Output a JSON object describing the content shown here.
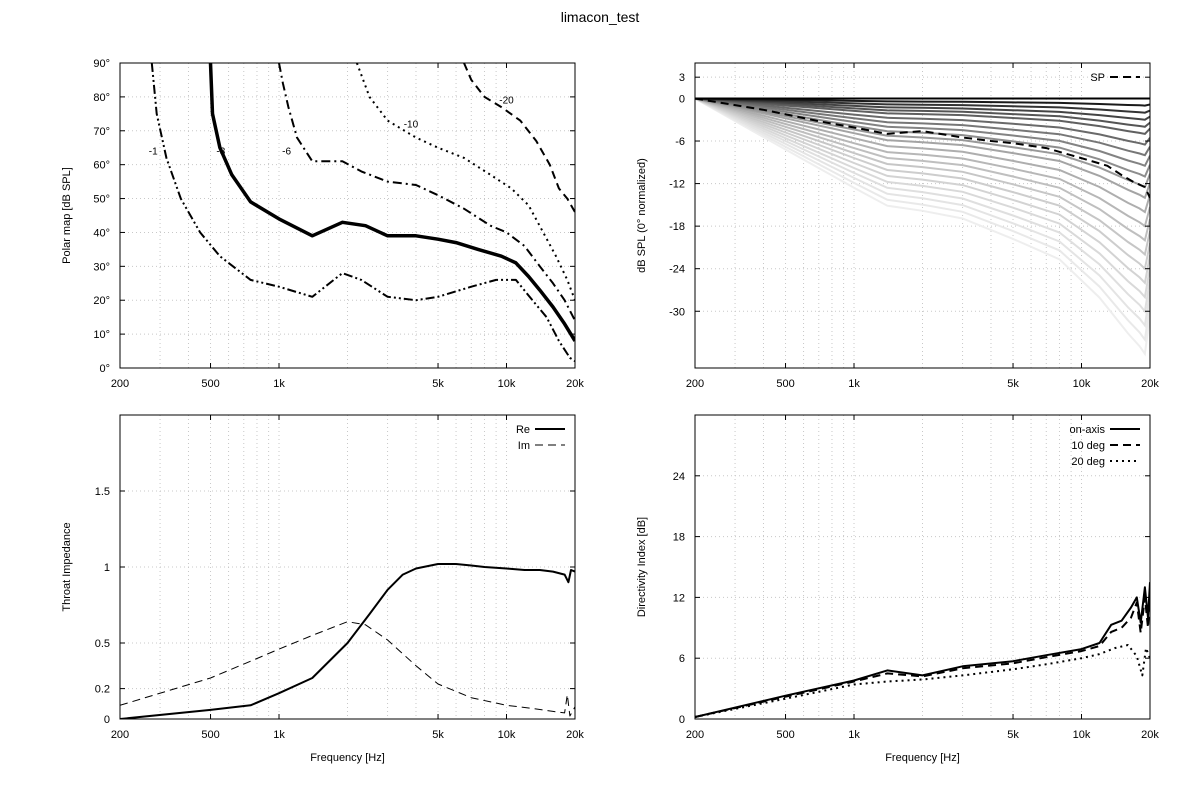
{
  "title": "limacon_test",
  "chart_data": [
    {
      "id": "polar",
      "type": "line",
      "subtype": "contour",
      "xlabel": "",
      "ylabel": "Polar map [dB SPL]",
      "xscale": "log",
      "xlim": [
        200,
        20000
      ],
      "ylim": [
        0,
        90
      ],
      "xticks": [
        200,
        500,
        1000,
        5000,
        10000,
        20000
      ],
      "xticklabels": [
        "200",
        "500",
        "1k",
        "5k",
        "10k",
        "20k"
      ],
      "yticks": [
        0,
        10,
        20,
        30,
        40,
        50,
        60,
        70,
        80,
        90
      ],
      "yticklabels": [
        "0°",
        "10°",
        "20°",
        "30°",
        "40°",
        "50°",
        "60°",
        "70°",
        "80°",
        "90°"
      ],
      "grid": true,
      "series": [
        {
          "name": "-1",
          "style": "dashdotdot",
          "width": 2,
          "label_at": [
            280,
            63
          ],
          "x": [
            276,
            290,
            320,
            370,
            450,
            550,
            750,
            1000,
            1400,
            1900,
            2300,
            3000,
            4000,
            5000,
            7000,
            9000,
            11000,
            13000,
            15000,
            17000,
            19000,
            20000
          ],
          "y": [
            90,
            75,
            62,
            50,
            40,
            33,
            26,
            24,
            21,
            28,
            26,
            21,
            20,
            21,
            24,
            26,
            26,
            20,
            15,
            8,
            3,
            2
          ]
        },
        {
          "name": "-3",
          "style": "solid",
          "width": 3.5,
          "label_at": [
            555,
            63
          ],
          "x": [
            500,
            510,
            550,
            620,
            750,
            1000,
            1400,
            1900,
            2400,
            3000,
            4000,
            5000,
            6000,
            7500,
            9500,
            11000,
            12500,
            14000,
            16000,
            18000,
            20000
          ],
          "y": [
            90,
            75,
            65,
            57,
            49,
            44,
            39,
            43,
            42,
            39,
            39,
            38,
            37,
            35,
            33,
            31,
            27,
            23,
            18,
            13,
            8
          ]
        },
        {
          "name": "-6",
          "style": "dashdot",
          "width": 2,
          "label_at": [
            1080,
            63
          ],
          "x": [
            1000,
            1040,
            1100,
            1200,
            1400,
            1900,
            2300,
            3000,
            4000,
            5000,
            6500,
            8500,
            10000,
            12000,
            14000,
            16000,
            18000,
            20000
          ],
          "y": [
            90,
            84,
            77,
            68,
            61,
            61,
            58,
            55,
            54,
            51,
            47,
            42,
            40,
            36,
            30,
            25,
            20,
            14
          ]
        },
        {
          "name": "-10",
          "style": "dotted",
          "width": 2,
          "label_at": [
            3800,
            71
          ],
          "x": [
            2200,
            2500,
            3000,
            4000,
            5000,
            6500,
            8500,
            10500,
            12500,
            14500,
            16500,
            18500,
            20000
          ],
          "y": [
            90,
            80,
            73,
            68,
            65,
            62,
            57,
            53,
            48,
            40,
            33,
            26,
            20
          ]
        },
        {
          "name": "-20",
          "style": "dashed",
          "width": 2,
          "label_at": [
            10000,
            78
          ],
          "x": [
            6500,
            7000,
            8000,
            9500,
            11500,
            13500,
            15500,
            17000,
            18500,
            20000
          ],
          "y": [
            90,
            85,
            80,
            77,
            73,
            67,
            60,
            53,
            50,
            46
          ]
        }
      ]
    },
    {
      "id": "spl",
      "type": "line",
      "xlabel": "",
      "ylabel": "dB SPL (0° normalized)",
      "xscale": "log",
      "xlim": [
        200,
        20000
      ],
      "ylim": [
        -38,
        5
      ],
      "xticks": [
        200,
        500,
        1000,
        5000,
        10000,
        20000
      ],
      "xticklabels": [
        "200",
        "500",
        "1k",
        "5k",
        "10k",
        "20k"
      ],
      "yticks": [
        3,
        0,
        -6,
        -12,
        -18,
        -24,
        -30
      ],
      "yticklabels": [
        "3",
        "0",
        "-6",
        "-12",
        "-18",
        "-24",
        "-30"
      ],
      "grid": true,
      "legend": {
        "position": "top-right",
        "entries": [
          "SP"
        ]
      },
      "family": {
        "x": [
          200,
          500,
          1000,
          1400,
          2000,
          3000,
          5000,
          8000,
          12000,
          16000,
          18000,
          19000,
          20000
        ],
        "shape": [
          0,
          0.2,
          0.35,
          0.42,
          0.44,
          0.47,
          0.55,
          0.63,
          0.78,
          0.92,
          0.97,
          1.0,
          0.85
        ],
        "ends": [
          0,
          -1,
          -2,
          -3,
          -4,
          -5,
          -6.5,
          -8,
          -9.5,
          -11,
          -12.5,
          -14,
          -16,
          -18,
          -20,
          -22,
          -24,
          -26,
          -28,
          -30,
          -32,
          -34,
          -36
        ],
        "greys": [
          "#000000",
          "#1a1a1a",
          "#333333",
          "#444444",
          "#555555",
          "#606060",
          "#6a6a6a",
          "#777777",
          "#838383",
          "#8e8e8e",
          "#999999",
          "#a4a4a4",
          "#aeaeae",
          "#b7b7b7",
          "#bfbfbf",
          "#c6c6c6",
          "#cdcdcd",
          "#d3d3d3",
          "#d9d9d9",
          "#dfdfdf",
          "#e4e4e4",
          "#e9e9e9",
          "#eeeeee"
        ]
      },
      "series": [
        {
          "name": "SP",
          "style": "dashed",
          "width": 2,
          "x": [
            200,
            400,
            700,
            1000,
            1400,
            2000,
            3000,
            4000,
            5000,
            7000,
            9000,
            11000,
            13000,
            15000,
            17000,
            19000,
            20000
          ],
          "y": [
            0,
            -1.6,
            -3.2,
            -4.1,
            -5.0,
            -4.6,
            -5.5,
            -6.0,
            -6.3,
            -7.0,
            -8.0,
            -8.8,
            -9.5,
            -10.8,
            -11.8,
            -12.5,
            -14
          ]
        }
      ]
    },
    {
      "id": "impedance",
      "type": "line",
      "xlabel": "Frequency [Hz]",
      "ylabel": "Throat Impedance",
      "xscale": "log",
      "xlim": [
        200,
        20000
      ],
      "ylim": [
        0,
        2
      ],
      "xticks": [
        200,
        500,
        1000,
        5000,
        10000,
        20000
      ],
      "xticklabels": [
        "200",
        "500",
        "1k",
        "5k",
        "10k",
        "20k"
      ],
      "yticks": [
        0,
        0.2,
        0.5,
        1,
        1.5
      ],
      "yticklabels": [
        "0",
        "0.2",
        "0.5",
        "1",
        "1.5"
      ],
      "grid": true,
      "legend": {
        "position": "top-right",
        "entries": [
          "Re",
          "Im"
        ]
      },
      "series": [
        {
          "name": "Re",
          "style": "solid",
          "width": 2,
          "x": [
            200,
            500,
            750,
            1000,
            1400,
            2000,
            2500,
            3000,
            3500,
            4000,
            5000,
            6000,
            7000,
            8000,
            10000,
            12000,
            14000,
            16000,
            18000,
            18700,
            19200,
            20000
          ],
          "y": [
            0.0,
            0.06,
            0.09,
            0.17,
            0.27,
            0.5,
            0.69,
            0.85,
            0.95,
            0.99,
            1.02,
            1.02,
            1.01,
            1.0,
            0.99,
            0.98,
            0.98,
            0.97,
            0.95,
            0.9,
            0.98,
            0.97
          ]
        },
        {
          "name": "Im",
          "style": "dashed",
          "width": 1,
          "x": [
            200,
            500,
            750,
            1000,
            1400,
            2000,
            2400,
            3000,
            4000,
            5000,
            7000,
            10000,
            13000,
            16000,
            18000,
            18500,
            19000,
            20000
          ],
          "y": [
            0.09,
            0.27,
            0.38,
            0.46,
            0.55,
            0.64,
            0.62,
            0.52,
            0.35,
            0.23,
            0.14,
            0.09,
            0.07,
            0.05,
            0.04,
            0.16,
            0.02,
            0.08
          ]
        }
      ]
    },
    {
      "id": "di",
      "type": "line",
      "xlabel": "Frequency [Hz]",
      "ylabel": "Directivity Index [dB]",
      "xscale": "log",
      "xlim": [
        200,
        20000
      ],
      "ylim": [
        0,
        30
      ],
      "xticks": [
        200,
        500,
        1000,
        5000,
        10000,
        20000
      ],
      "xticklabels": [
        "200",
        "500",
        "1k",
        "5k",
        "10k",
        "20k"
      ],
      "yticks": [
        0,
        6,
        12,
        18,
        24
      ],
      "yticklabels": [
        "0",
        "6",
        "12",
        "18",
        "24"
      ],
      "grid": true,
      "legend": {
        "position": "top-right",
        "entries": [
          "on-axis",
          "10 deg",
          "20 deg"
        ]
      },
      "series": [
        {
          "name": "on-axis",
          "style": "solid",
          "width": 2,
          "x": [
            200,
            500,
            1000,
            1400,
            2000,
            3000,
            5000,
            7000,
            10000,
            12000,
            13500,
            15000,
            16500,
            17500,
            18200,
            19000,
            19600,
            20000
          ],
          "y": [
            0.2,
            2.3,
            3.8,
            4.8,
            4.3,
            5.2,
            5.7,
            6.3,
            6.9,
            7.5,
            9.3,
            9.7,
            11.0,
            12.0,
            9.5,
            13.0,
            10.0,
            13.5
          ]
        },
        {
          "name": "10 deg",
          "style": "dashed",
          "width": 2,
          "x": [
            200,
            500,
            1000,
            1400,
            2000,
            3000,
            5000,
            7000,
            10000,
            12000,
            13500,
            15000,
            16500,
            17500,
            18200,
            19000,
            19600,
            20000
          ],
          "y": [
            0.2,
            2.2,
            3.7,
            4.5,
            4.2,
            5.0,
            5.5,
            6.1,
            6.7,
            7.2,
            8.6,
            9.0,
            10.0,
            11.5,
            8.5,
            12.0,
            9.0,
            12.5
          ]
        },
        {
          "name": "20 deg",
          "style": "dotted",
          "width": 2,
          "x": [
            200,
            500,
            1000,
            1400,
            2000,
            3000,
            5000,
            7000,
            10000,
            12000,
            14000,
            16000,
            17500,
            18500,
            19200,
            20000
          ],
          "y": [
            0.2,
            2.0,
            3.4,
            3.7,
            3.9,
            4.3,
            4.9,
            5.4,
            6.0,
            6.4,
            7.0,
            7.3,
            6.2,
            4.3,
            7.0,
            6.0
          ]
        }
      ]
    }
  ]
}
